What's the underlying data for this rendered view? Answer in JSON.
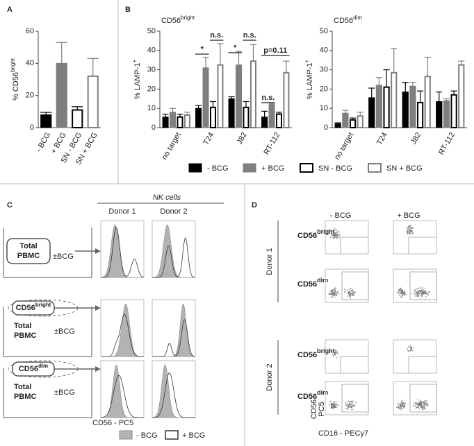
{
  "panels": {
    "a": "A",
    "b": "B"
  },
  "chart_data": [
    {
      "type": "bar",
      "ylabel": "% CD56",
      "ylabel_sup": "bright",
      "categories": [
        "- BCG",
        "+ BCG",
        "SN - BCG",
        "SN + BCG"
      ],
      "values": [
        8,
        40,
        11,
        32
      ],
      "errors": [
        1.5,
        13,
        2,
        11
      ],
      "colors": [
        "#000000",
        "#7f7f7f",
        "#ffffff",
        "#ffffff"
      ],
      "edgecolors": [
        "#000000",
        "#7f7f7f",
        "#000000",
        "#7f7f7f"
      ],
      "ylim": [
        0,
        60
      ],
      "yticks": [
        0,
        20,
        40,
        60
      ]
    },
    {
      "type": "bar",
      "title": "CD56",
      "title_sup": "bright",
      "ylabel": "% LAMP-1",
      "ylabel_sup": "+",
      "categories": [
        "no target",
        "T24",
        "J82",
        "RT-112"
      ],
      "series": [
        {
          "name": "- BCG",
          "color": "#000000",
          "edgecolor": "#000000",
          "values": [
            5.5,
            10,
            15,
            5.5
          ],
          "errors": [
            1.5,
            1.5,
            1,
            3
          ]
        },
        {
          "name": "+ BCG",
          "color": "#7f7f7f",
          "edgecolor": "#7f7f7f",
          "values": [
            8,
            31,
            32.5,
            12
          ],
          "errors": [
            2,
            5.5,
            7,
            0.5
          ]
        },
        {
          "name": "SN - BCG",
          "color": "#ffffff",
          "edgecolor": "#000000",
          "values": [
            5.5,
            10.5,
            10.5,
            7
          ],
          "errors": [
            1.5,
            3,
            3,
            1
          ]
        },
        {
          "name": "SN + BCG",
          "color": "#ffffff",
          "edgecolor": "#7f7f7f",
          "values": [
            6.5,
            32.5,
            34.5,
            28.5
          ],
          "errors": [
            1.5,
            11,
            8.5,
            6
          ]
        }
      ],
      "annotations": [
        "*",
        "n.s.",
        "*",
        "n.s.",
        "n.s.",
        "p=0.11"
      ],
      "ylim": [
        0,
        50
      ],
      "yticks": [
        0,
        10,
        20,
        30,
        40,
        50
      ]
    },
    {
      "type": "bar",
      "title": "CD56",
      "title_sup": "dim",
      "ylabel": "% LAMP-1",
      "ylabel_sup": "+",
      "categories": [
        "no target",
        "T24",
        "J82",
        "RT-112"
      ],
      "series": [
        {
          "color": "#000000",
          "edgecolor": "#000000",
          "values": [
            2,
            15.5,
            18.5,
            13.5
          ],
          "errors": [
            0.5,
            5,
            5,
            5
          ]
        },
        {
          "color": "#7f7f7f",
          "edgecolor": "#7f7f7f",
          "values": [
            7.5,
            22,
            21.5,
            14
          ],
          "errors": [
            1.5,
            4,
            2,
            1
          ]
        },
        {
          "color": "#ffffff",
          "edgecolor": "#000000",
          "values": [
            4,
            21,
            13,
            17
          ],
          "errors": [
            1,
            9,
            6,
            2
          ]
        },
        {
          "color": "#ffffff",
          "edgecolor": "#7f7f7f",
          "values": [
            6,
            28.5,
            26.5,
            32.5
          ],
          "errors": [
            2,
            12.5,
            10,
            2
          ]
        }
      ],
      "ylim": [
        0,
        50
      ],
      "yticks": [
        0,
        10,
        20,
        30,
        40,
        50
      ]
    }
  ],
  "panel_c": {
    "label": "C",
    "header": "NK cells",
    "columns": [
      "Donor 1",
      "Donor 2"
    ],
    "rows": [
      {
        "box_lines": [
          "Total",
          "PBMC"
        ],
        "treatment": "±BCG"
      },
      {
        "inner": "CD56",
        "inner_sup": "bright",
        "box_lines": [
          "Total",
          "PBMC"
        ],
        "treatment": "±BCG"
      },
      {
        "inner": "CD56",
        "inner_sup": "dim",
        "box_lines": [
          "Total",
          "PBMC"
        ],
        "treatment": "±BCG"
      }
    ],
    "xlabel": "CD56 - PC5",
    "legend": [
      "- BCG",
      "+ BCG"
    ]
  },
  "panel_d": {
    "label": "D",
    "columns": [
      "- BCG",
      "+ BCG"
    ],
    "donors": [
      {
        "name": "Donor 1",
        "rows": [
          {
            "text": "CD56",
            "sup": "bright"
          },
          {
            "text": "CD56",
            "sup": "dim"
          }
        ]
      },
      {
        "name": "Donor 2",
        "rows": [
          {
            "text": "CD56",
            "sup": "bright"
          },
          {
            "text": "CD56",
            "sup": "dim"
          }
        ]
      }
    ],
    "ylabel": [
      "CD56",
      "PC5"
    ],
    "xlabel": "CD16 - PECy7"
  }
}
